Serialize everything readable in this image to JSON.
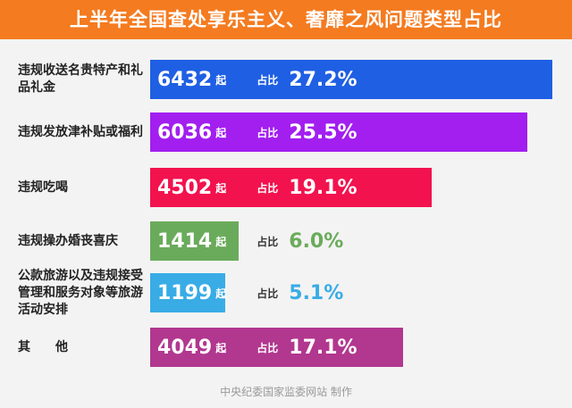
{
  "chart_data": {
    "type": "bar",
    "orientation": "horizontal",
    "title": "上半年全国查处享乐主义、奢靡之风问题类型占比",
    "categories": [
      "违规收送名贵特产和礼品礼金",
      "违规发放津补贴或福利",
      "违规吃喝",
      "违规操办婚丧喜庆",
      "公款旅游以及违规接受管理和服务对象等旅游活动安排",
      "其他"
    ],
    "values": [
      6432,
      6036,
      4502,
      1414,
      1199,
      4049
    ],
    "unit": "起",
    "share_prefix": "占比",
    "shares": [
      27.2,
      25.5,
      19.1,
      6.0,
      5.1,
      17.1
    ],
    "share_labels": [
      "27.2%",
      "25.5%",
      "19.1%",
      "6.0%",
      "5.1%",
      "17.1%"
    ],
    "colors": [
      "#1f5fe3",
      "#a21ff0",
      "#f2124e",
      "#6aab5b",
      "#39ace6",
      "#b1378f"
    ],
    "source": "中央纪委国家监委网站 制作"
  }
}
